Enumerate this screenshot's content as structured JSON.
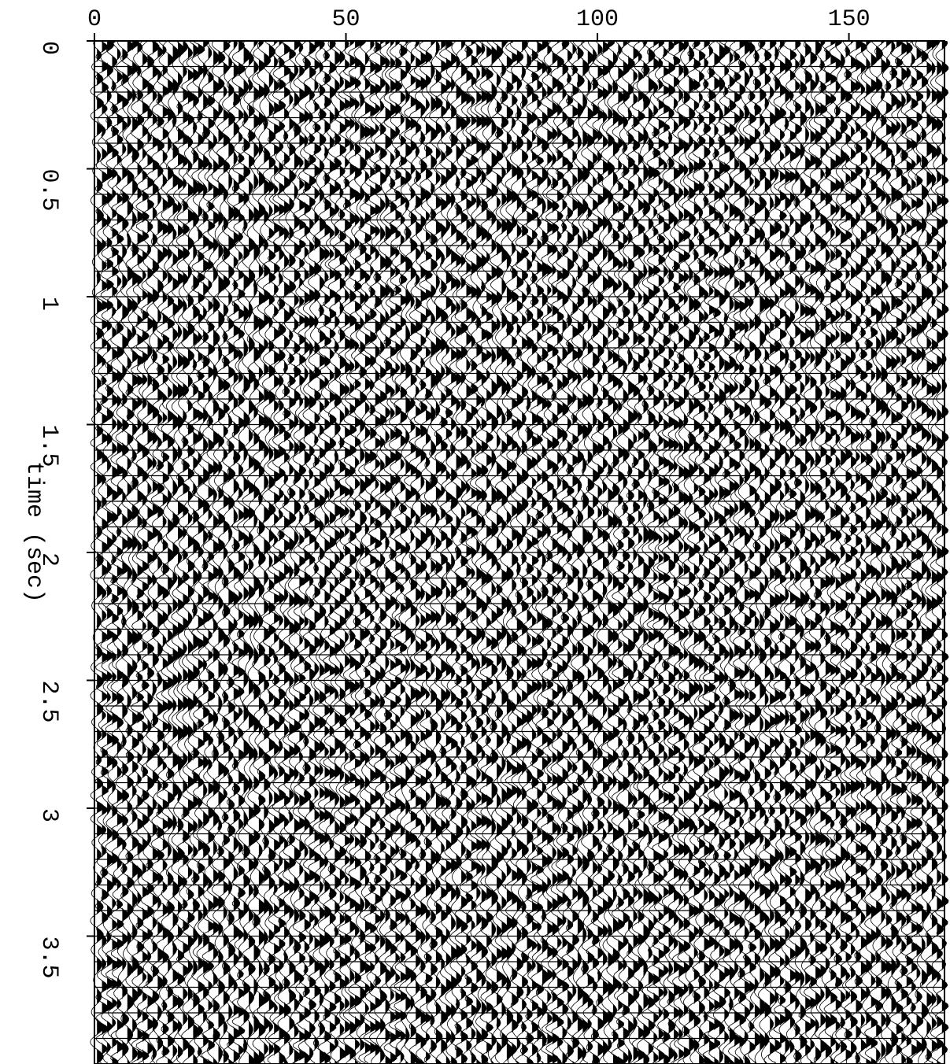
{
  "chart_data": {
    "type": "seismic",
    "ylabel": "time (sec)",
    "xlim": [
      0,
      169
    ],
    "xticks": [
      0,
      50,
      100,
      150
    ],
    "ylim": [
      0,
      4
    ],
    "yticks": [
      0,
      0.5,
      1,
      1.5,
      2,
      2.5,
      3,
      3.5
    ],
    "color": "#000000"
  }
}
